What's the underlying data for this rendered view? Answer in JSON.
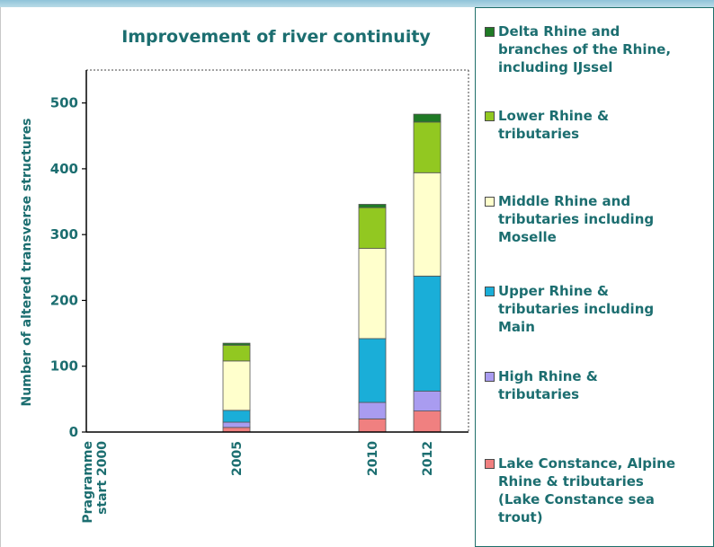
{
  "chart_data": {
    "type": "bar",
    "stacked": true,
    "title": "Improvement of river continuity",
    "ylabel": "Number of altered transverse structures",
    "xlabel": "",
    "ylim": [
      0,
      550
    ],
    "yticks": [
      0,
      100,
      200,
      300,
      400,
      500
    ],
    "categories": [
      "Pragramme start 2000",
      "2005",
      "2010",
      "2012"
    ],
    "series": [
      {
        "name": "Lake Constance, Alpine Rhine & tributaries (Lake Constance sea trout)",
        "color": "#f08080",
        "values": [
          0,
          7,
          20,
          32
        ]
      },
      {
        "name": "High Rhine & tributaries",
        "color": "#a99cf0",
        "values": [
          0,
          8,
          25,
          30
        ]
      },
      {
        "name": "Upper Rhine & tributaries including Main",
        "color": "#1aaed8",
        "values": [
          0,
          18,
          97,
          175
        ]
      },
      {
        "name": "Middle Rhine and tributaries including Moselle",
        "color": "#ffffcc",
        "values": [
          0,
          75,
          137,
          157
        ]
      },
      {
        "name": "Lower Rhine & tributaries",
        "color": "#92c821",
        "values": [
          0,
          24,
          62,
          77
        ]
      },
      {
        "name": "Delta Rhine and branches of the Rhine, including IJssel",
        "color": "#1f7a25",
        "values": [
          0,
          3,
          5,
          12
        ]
      }
    ],
    "legend_position": "right",
    "grid": false
  },
  "legend_items": [
    {
      "label": "Delta Rhine and\nbranches of the Rhine,\nincluding IJssel",
      "color": "#1f7a25"
    },
    {
      "label": "Lower Rhine &\ntributaries",
      "color": "#92c821"
    },
    {
      "label": "Middle Rhine and\ntributaries including\nMoselle",
      "color": "#ffffcc"
    },
    {
      "label": "Upper Rhine &\ntributaries including\nMain",
      "color": "#1aaed8"
    },
    {
      "label": "High Rhine &\ntributaries",
      "color": "#a99cf0"
    },
    {
      "label": "Lake Constance, Alpine\nRhine & tributaries\n(Lake Constance sea\ntrout)",
      "color": "#f08080"
    }
  ],
  "colors": {
    "text": "#1c6e70",
    "axis": "#000000",
    "legend_border": "#1f6f6a"
  }
}
